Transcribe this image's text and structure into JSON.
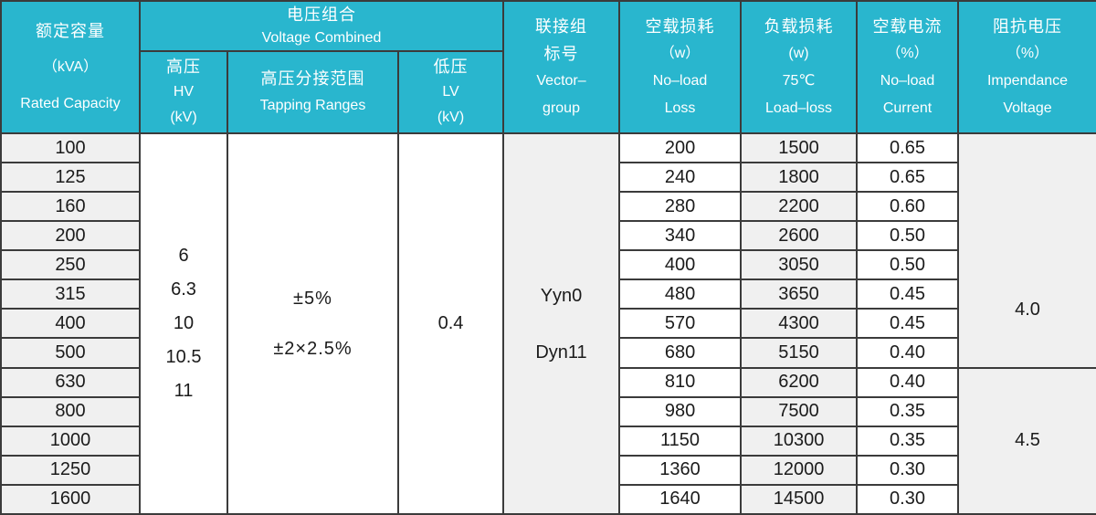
{
  "colors": {
    "header_bg": "#29b6ce",
    "header_text": "#ffffff",
    "shaded_column_bg": "#f0f0f0",
    "plain_column_bg": "#ffffff",
    "border": "#3b3b3b",
    "body_text": "#1b1b1b"
  },
  "table": {
    "header": {
      "rated_capacity": {
        "zh": "额定容量",
        "unit": "（kVA）",
        "en": "Rated  Capacity"
      },
      "voltage_combined": {
        "zh": "电压组合",
        "en": "Voltage Combined"
      },
      "hv": {
        "zh": "高压",
        "en": "HV",
        "unit": "(kV)"
      },
      "tapping_ranges": {
        "zh": "高压分接范围",
        "en": "Tapping Ranges"
      },
      "lv": {
        "zh": "低压",
        "en": "LV",
        "unit": "(kV)"
      },
      "vector_group": {
        "zh": "联接组\n标号",
        "en": "Vector–\ngroup"
      },
      "no_load_loss": {
        "zh": "空载损耗",
        "unit": "（w）",
        "en": "No–load\nLoss"
      },
      "load_loss": {
        "zh": "负载损耗",
        "unit": "(w)",
        "temp": "75℃",
        "en": "Load–loss"
      },
      "no_load_current": {
        "zh": "空载电流",
        "unit": "（%）",
        "en": "No–load\nCurrent"
      },
      "impedance_voltage": {
        "zh": "阻抗电压",
        "unit": "（%）",
        "en": "Impendance\nVoltage"
      }
    },
    "merged": {
      "hv_values": "6\n6.3\n10\n10.5\n11",
      "tapping_values": "±5%\n±2×2.5%",
      "lv_value": "0.4",
      "vector_values": "Yyn0\nDyn11",
      "impedance_groups": [
        {
          "value": "4.0",
          "rowspan": 8
        },
        {
          "value": "4.5",
          "rowspan": 5
        }
      ]
    },
    "rows": [
      {
        "capacity": "100",
        "no_load_loss": "200",
        "load_loss": "1500",
        "no_load_current": "0.65"
      },
      {
        "capacity": "125",
        "no_load_loss": "240",
        "load_loss": "1800",
        "no_load_current": "0.65"
      },
      {
        "capacity": "160",
        "no_load_loss": "280",
        "load_loss": "2200",
        "no_load_current": "0.60"
      },
      {
        "capacity": "200",
        "no_load_loss": "340",
        "load_loss": "2600",
        "no_load_current": "0.50"
      },
      {
        "capacity": "250",
        "no_load_loss": "400",
        "load_loss": "3050",
        "no_load_current": "0.50"
      },
      {
        "capacity": "315",
        "no_load_loss": "480",
        "load_loss": "3650",
        "no_load_current": "0.45"
      },
      {
        "capacity": "400",
        "no_load_loss": "570",
        "load_loss": "4300",
        "no_load_current": "0.45"
      },
      {
        "capacity": "500",
        "no_load_loss": "680",
        "load_loss": "5150",
        "no_load_current": "0.40"
      },
      {
        "capacity": "630",
        "no_load_loss": "810",
        "load_loss": "6200",
        "no_load_current": "0.40"
      },
      {
        "capacity": "800",
        "no_load_loss": "980",
        "load_loss": "7500",
        "no_load_current": "0.35"
      },
      {
        "capacity": "1000",
        "no_load_loss": "1150",
        "load_loss": "10300",
        "no_load_current": "0.35"
      },
      {
        "capacity": "1250",
        "no_load_loss": "1360",
        "load_loss": "12000",
        "no_load_current": "0.30"
      },
      {
        "capacity": "1600",
        "no_load_loss": "1640",
        "load_loss": "14500",
        "no_load_current": "0.30"
      }
    ]
  }
}
